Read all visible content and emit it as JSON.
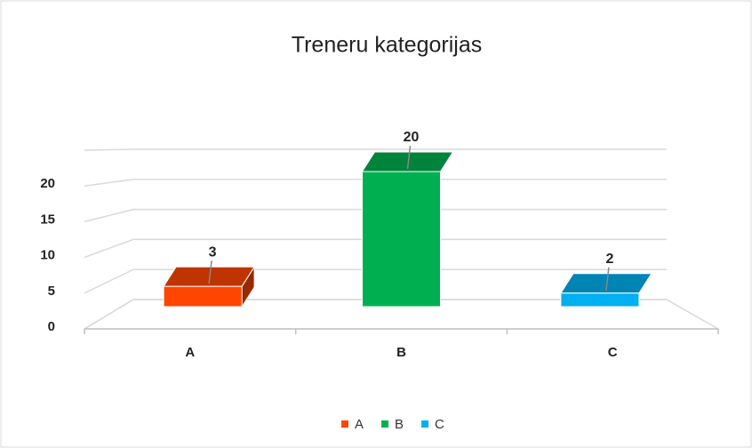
{
  "chart_data": {
    "type": "bar3d",
    "title": "Treneru kategorijas",
    "categories": [
      "A",
      "B",
      "C"
    ],
    "values": [
      3,
      20,
      2
    ],
    "colors": [
      "#ff4500",
      "#00b050",
      "#00b0f0"
    ],
    "ylim": [
      0,
      25
    ],
    "yticks": [
      0,
      5,
      10,
      15,
      20
    ],
    "grid": true,
    "legend": "bottom"
  }
}
